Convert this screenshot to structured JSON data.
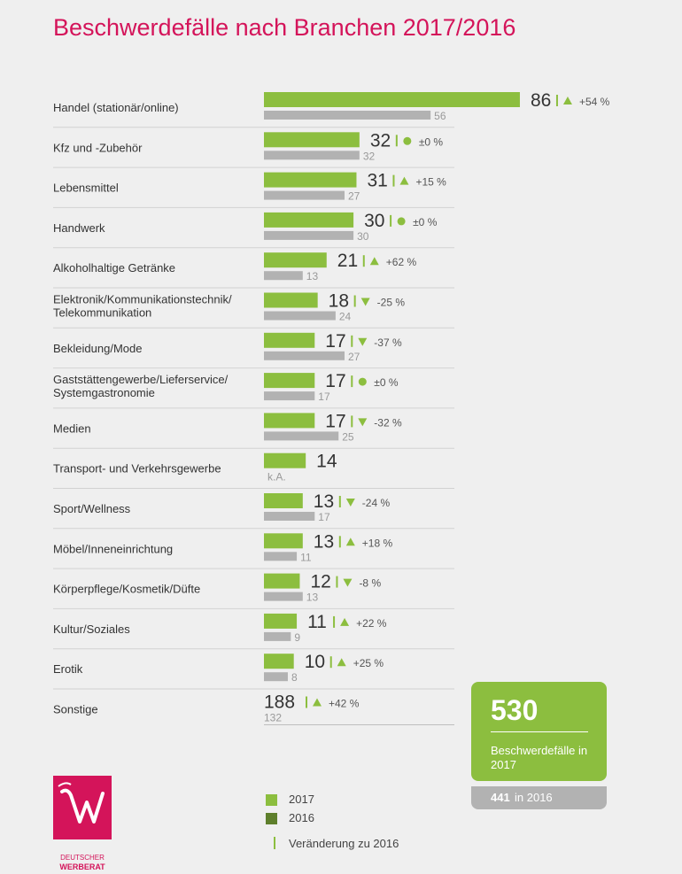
{
  "title": "Beschwerdefälle nach Branchen 2017/2016",
  "colors": {
    "accent": "#d4145a",
    "bar_2017": "#8cbe3f",
    "bar_2016": "#b2b2b2",
    "legend_2016": "#5e7f2c"
  },
  "chart_data": {
    "type": "bar",
    "orientation": "horizontal",
    "title": "Beschwerdefälle nach Branchen 2017/2016",
    "categories": [
      "Handel (stationär/online)",
      "Kfz und -Zubehör",
      "Lebensmittel",
      "Handwerk",
      "Alkoholhaltige Getränke",
      "Elektronik/Kommunikationstechnik/ Telekommunikation",
      "Bekleidung/Mode",
      "Gaststättengewerbe/Lieferservice/ Systemgastronomie",
      "Medien",
      "Transport- und Verkehrsgewerbe",
      "Sport/Wellness",
      "Möbel/Inneneinrichtung",
      "Körperpflege/Kosmetik/Düfte",
      "Kultur/Soziales",
      "Erotik",
      "Sonstige"
    ],
    "series": [
      {
        "name": "2017",
        "values": [
          86,
          32,
          31,
          30,
          21,
          18,
          17,
          17,
          17,
          14,
          13,
          13,
          12,
          11,
          10,
          188
        ]
      },
      {
        "name": "2016",
        "values": [
          56,
          32,
          27,
          30,
          13,
          24,
          27,
          17,
          25,
          null,
          17,
          11,
          13,
          9,
          8,
          132
        ]
      }
    ],
    "value_labels_2016": [
      "56",
      "32",
      "27",
      "30",
      "13",
      "24",
      "27",
      "17",
      "25",
      "k.A.",
      "17",
      "11",
      "13",
      "9",
      "8",
      "132"
    ],
    "changes": [
      {
        "direction": "up",
        "label": "+54 %"
      },
      {
        "direction": "same",
        "label": "±0 %"
      },
      {
        "direction": "up",
        "label": "+15 %"
      },
      {
        "direction": "same",
        "label": "±0 %"
      },
      {
        "direction": "up",
        "label": "+62 %"
      },
      {
        "direction": "down",
        "label": "-25 %"
      },
      {
        "direction": "down",
        "label": "-37 %"
      },
      {
        "direction": "same",
        "label": "±0 %"
      },
      {
        "direction": "down",
        "label": "-32 %"
      },
      null,
      {
        "direction": "down",
        "label": "-24 %"
      },
      {
        "direction": "up",
        "label": "+18 %"
      },
      {
        "direction": "down",
        "label": "-8 %"
      },
      {
        "direction": "up",
        "label": "+22 %"
      },
      {
        "direction": "up",
        "label": "+25 %"
      },
      {
        "direction": "up",
        "label": "+42 %"
      }
    ]
  },
  "total": {
    "value": "530",
    "label": "Beschwerdefälle in 2017",
    "prev_value": "441",
    "prev_label": "in 2016"
  },
  "legend": {
    "item_2017": "2017",
    "item_2016": "2016",
    "change": "Veränderung zu 2016"
  },
  "logo": {
    "line1": "DEUTSCHER",
    "line2": "WERBERAT"
  }
}
